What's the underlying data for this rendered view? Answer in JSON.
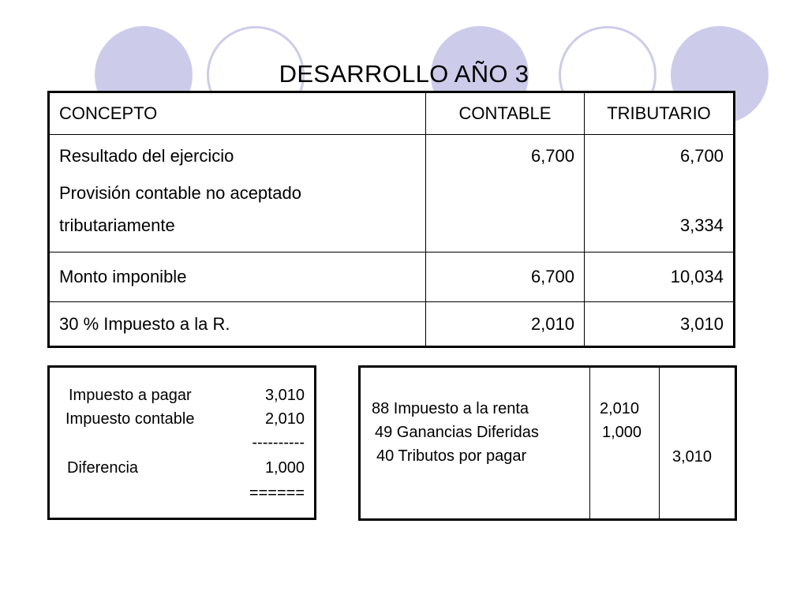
{
  "title": "DESARROLLO AÑO 3",
  "table": {
    "headers": [
      "CONCEPTO",
      "CONTABLE",
      "TRIBUTARIO"
    ],
    "row1": {
      "concepto_lines": [
        "Resultado del ejercicio",
        "Provisión contable no aceptado",
        "tributariamente"
      ],
      "contable_lines": [
        "6,700",
        "",
        ""
      ],
      "tributario_lines": [
        "6,700",
        "",
        "3,334"
      ]
    },
    "row2": {
      "concepto": "Monto imponible",
      "contable": "6,700",
      "tributario": "10,034"
    },
    "row3": {
      "concepto": "30 % Impuesto a la R.",
      "contable": "2,010",
      "tributario": "3,010"
    }
  },
  "left_box": {
    "impuesto_pagar_label": "Impuesto a pagar",
    "impuesto_pagar_value": "3,010",
    "impuesto_contable_label": "Impuesto contable",
    "impuesto_contable_value": "2,010",
    "dash_line": "----------",
    "diferencia_label": "Diferencia",
    "diferencia_value": "1,000",
    "equals_line": "======"
  },
  "right_box": {
    "line1": "88 Impuesto a la renta",
    "line2": "49 Ganancias Diferidas",
    "line3": "40 Tributos por pagar",
    "debe1": "2,010",
    "debe2": "1,000",
    "haber": "3,010"
  }
}
